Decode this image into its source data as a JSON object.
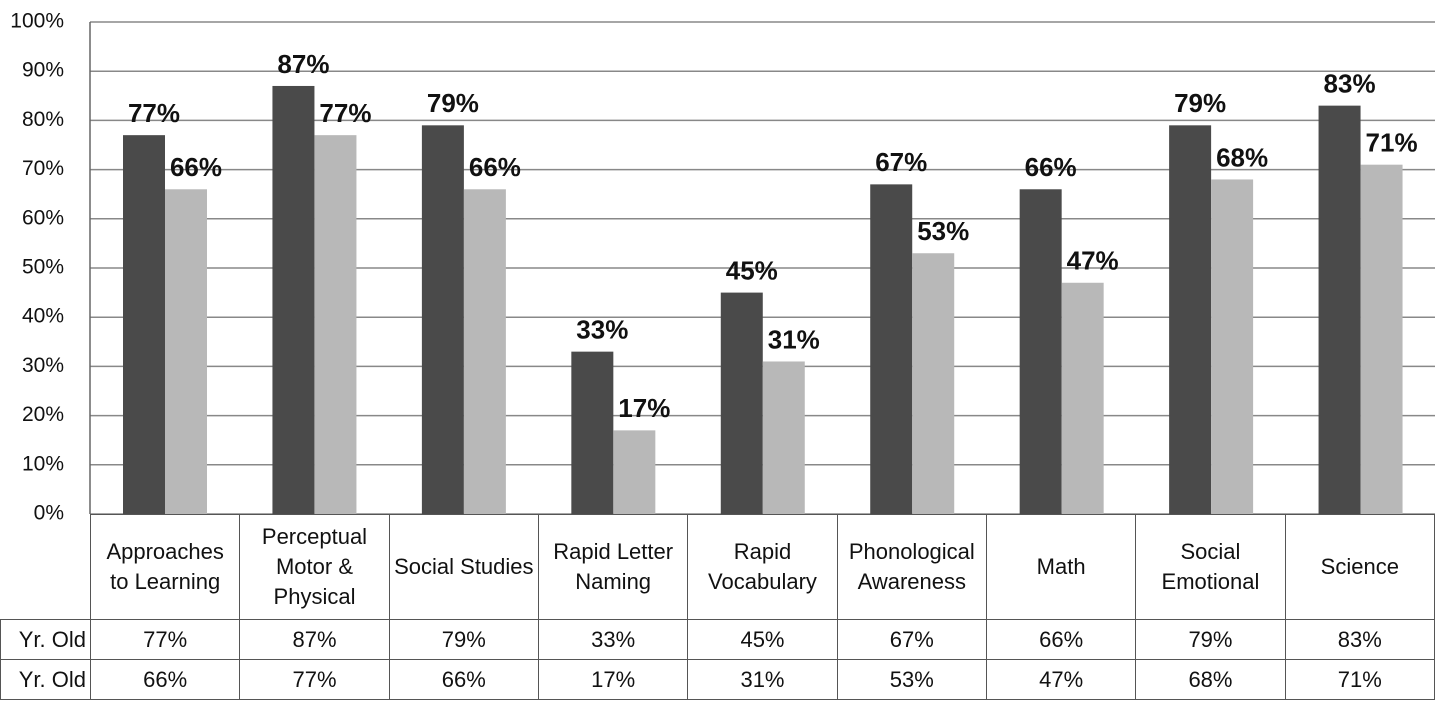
{
  "chart_data": {
    "type": "bar",
    "categories": [
      "Approaches to Learning",
      "Perceptual Motor & Physical",
      "Social Studies",
      "Rapid Letter Naming",
      "Rapid Vocabulary",
      "Phonological Awareness",
      "Math",
      "Social Emotional",
      "Science"
    ],
    "series": [
      {
        "name": "Yr. Old",
        "color": "#4a4a4a",
        "values": [
          77,
          87,
          79,
          33,
          45,
          67,
          66,
          79,
          83
        ],
        "value_labels": [
          "77%",
          "87%",
          "79%",
          "33%",
          "45%",
          "67%",
          "66%",
          "79%",
          "83%"
        ]
      },
      {
        "name": "Yr. Old",
        "color": "#b8b8b8",
        "values": [
          66,
          77,
          66,
          17,
          31,
          53,
          47,
          68,
          71
        ],
        "value_labels": [
          "66%",
          "77%",
          "66%",
          "17%",
          "31%",
          "53%",
          "47%",
          "68%",
          "71%"
        ]
      }
    ],
    "ylim": [
      0,
      100
    ],
    "yticks": [
      {
        "value": 0,
        "label": "0%"
      },
      {
        "value": 10,
        "label": "10%"
      },
      {
        "value": 20,
        "label": "20%"
      },
      {
        "value": 30,
        "label": "30%"
      },
      {
        "value": 40,
        "label": "40%"
      },
      {
        "value": 50,
        "label": "50%"
      },
      {
        "value": 60,
        "label": "60%"
      },
      {
        "value": 70,
        "label": "70%"
      },
      {
        "value": 80,
        "label": "80%"
      },
      {
        "value": 90,
        "label": "90%"
      },
      {
        "value": 100,
        "label": "100%"
      }
    ],
    "grid": true
  }
}
